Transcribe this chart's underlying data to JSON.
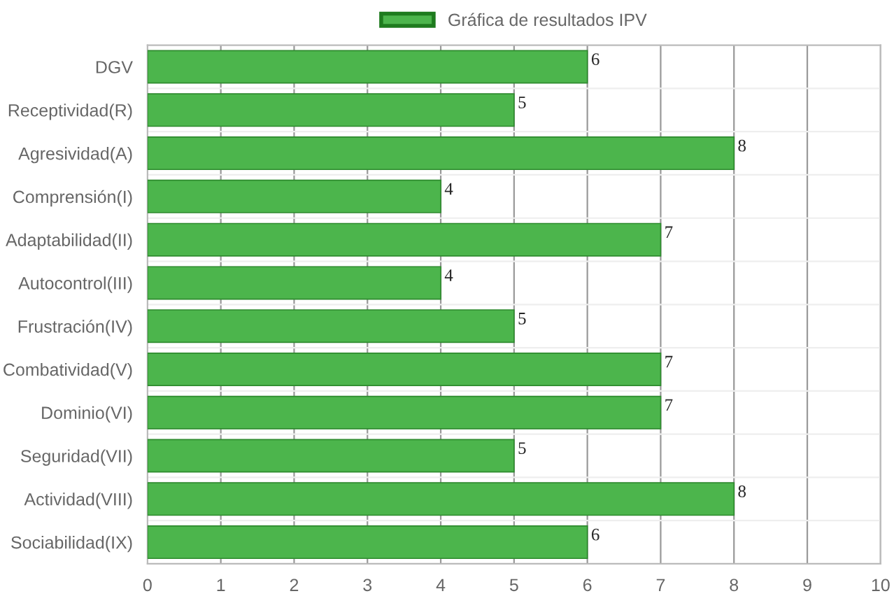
{
  "chart_data": {
    "type": "bar",
    "orientation": "horizontal",
    "categories": [
      "DGV",
      "Receptividad(R)",
      "Agresividad(A)",
      "Comprensión(I)",
      "Adaptabilidad(II)",
      "Autocontrol(III)",
      "Frustración(IV)",
      "Combatividad(V)",
      "Dominio(VI)",
      "Seguridad(VII)",
      "Actividad(VIII)",
      "Sociabilidad(IX)"
    ],
    "series": [
      {
        "name": "Gráfica de resultados IPV",
        "color": "#4cb54c",
        "values": [
          6,
          5,
          8,
          4,
          7,
          4,
          5,
          7,
          7,
          5,
          8,
          6
        ]
      }
    ],
    "xlim": [
      0,
      10
    ],
    "xticks": [
      0,
      1,
      2,
      3,
      4,
      5,
      6,
      7,
      8,
      9,
      10
    ],
    "grid": "x",
    "legend": "top",
    "data_labels": true
  }
}
